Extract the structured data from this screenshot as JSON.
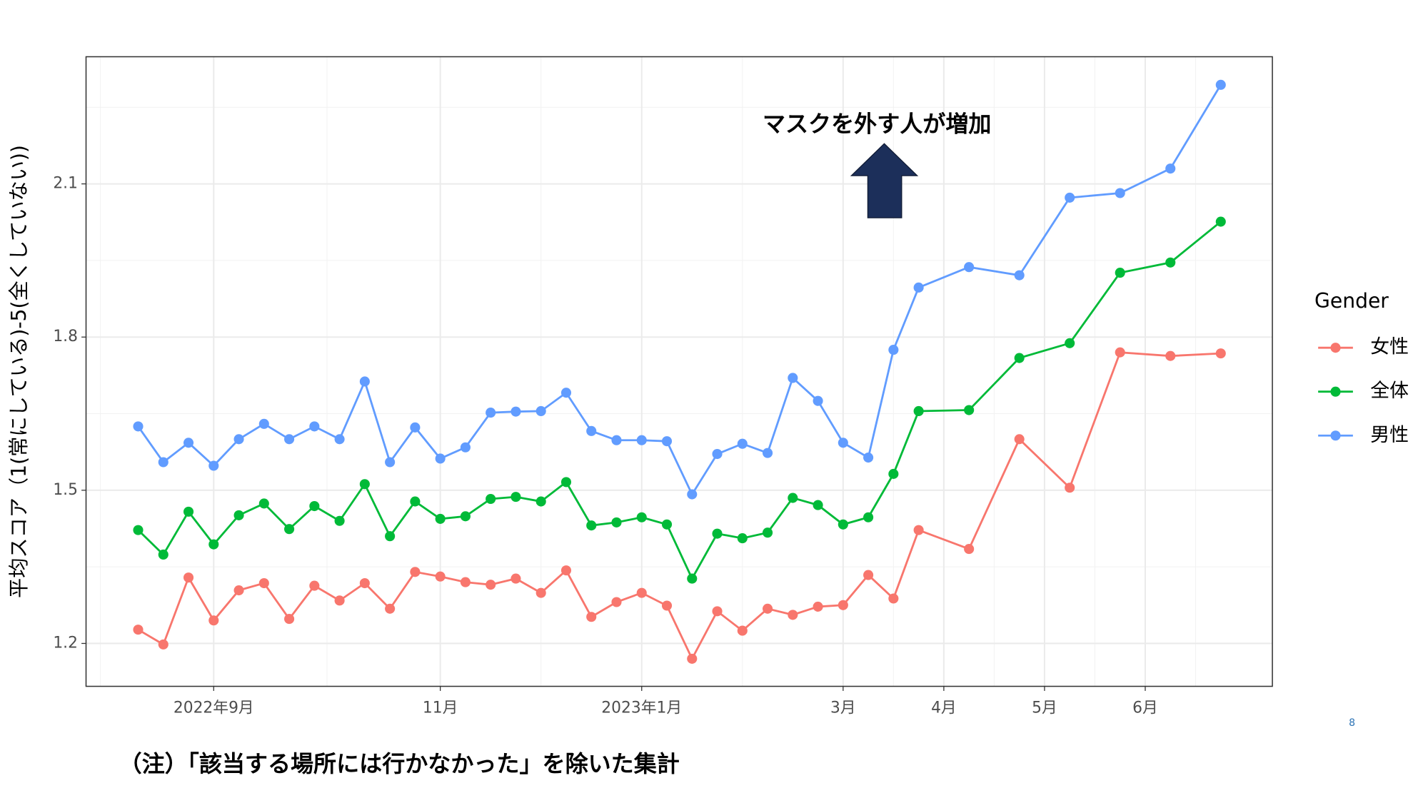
{
  "chart_data": {
    "type": "line",
    "y_label": "平均スコア（1(常にしている)-5(全くしていない))",
    "annotation": "マスクを外す人が増加",
    "legend_title": "Gender",
    "legend_position": "right",
    "grid": true,
    "x": [
      0,
      1,
      2,
      3,
      4,
      5,
      6,
      7,
      8,
      9,
      10,
      11,
      12,
      13,
      14,
      15,
      16,
      17,
      18,
      19,
      20,
      21,
      22,
      23,
      24,
      25,
      26,
      27,
      28,
      29,
      30,
      31,
      33,
      35,
      37,
      39,
      41,
      43
    ],
    "xlim": [
      -2.07,
      45.05
    ],
    "xticks": [
      {
        "value": 3,
        "label": "2022年9月"
      },
      {
        "value": 12,
        "label": "11月"
      },
      {
        "value": 20,
        "label": "2023年1月"
      },
      {
        "value": 28,
        "label": "3月"
      },
      {
        "value": 32,
        "label": "4月"
      },
      {
        "value": 36,
        "label": "5月"
      },
      {
        "value": 40,
        "label": "6月"
      }
    ],
    "ylim": [
      1.116,
      2.349
    ],
    "yticks": [
      1.2,
      1.5,
      1.8,
      2.1
    ],
    "series": [
      {
        "name": "女性",
        "color": "#F8766D",
        "values": [
          1.227,
          1.198,
          1.329,
          1.245,
          1.304,
          1.318,
          1.248,
          1.313,
          1.284,
          1.318,
          1.268,
          1.34,
          1.331,
          1.32,
          1.315,
          1.327,
          1.299,
          1.343,
          1.252,
          1.281,
          1.299,
          1.274,
          1.17,
          1.263,
          1.225,
          1.268,
          1.256,
          1.272,
          1.275,
          1.334,
          1.288,
          1.422,
          1.385,
          1.6,
          1.505,
          1.77,
          1.763,
          1.768
        ]
      },
      {
        "name": "全体",
        "color": "#00BA38",
        "values": [
          1.422,
          1.374,
          1.458,
          1.394,
          1.451,
          1.474,
          1.424,
          1.469,
          1.44,
          1.512,
          1.41,
          1.478,
          1.444,
          1.449,
          1.483,
          1.487,
          1.478,
          1.516,
          1.431,
          1.437,
          1.447,
          1.433,
          1.327,
          1.415,
          1.406,
          1.417,
          1.485,
          1.471,
          1.433,
          1.447,
          1.532,
          1.655,
          1.657,
          1.759,
          1.788,
          1.926,
          1.946,
          2.026
        ]
      },
      {
        "name": "男性",
        "color": "#619CFF",
        "values": [
          1.625,
          1.555,
          1.593,
          1.548,
          1.6,
          1.63,
          1.6,
          1.625,
          1.6,
          1.713,
          1.555,
          1.623,
          1.562,
          1.584,
          1.652,
          1.654,
          1.655,
          1.691,
          1.616,
          1.598,
          1.598,
          1.596,
          1.492,
          1.571,
          1.591,
          1.573,
          1.72,
          1.675,
          1.593,
          1.564,
          1.775,
          1.897,
          1.937,
          1.921,
          2.073,
          2.082,
          2.13,
          2.294
        ]
      }
    ]
  },
  "footnote": "（注）「該当する場所には行かなかった」を除いた集計",
  "page_number": 8
}
